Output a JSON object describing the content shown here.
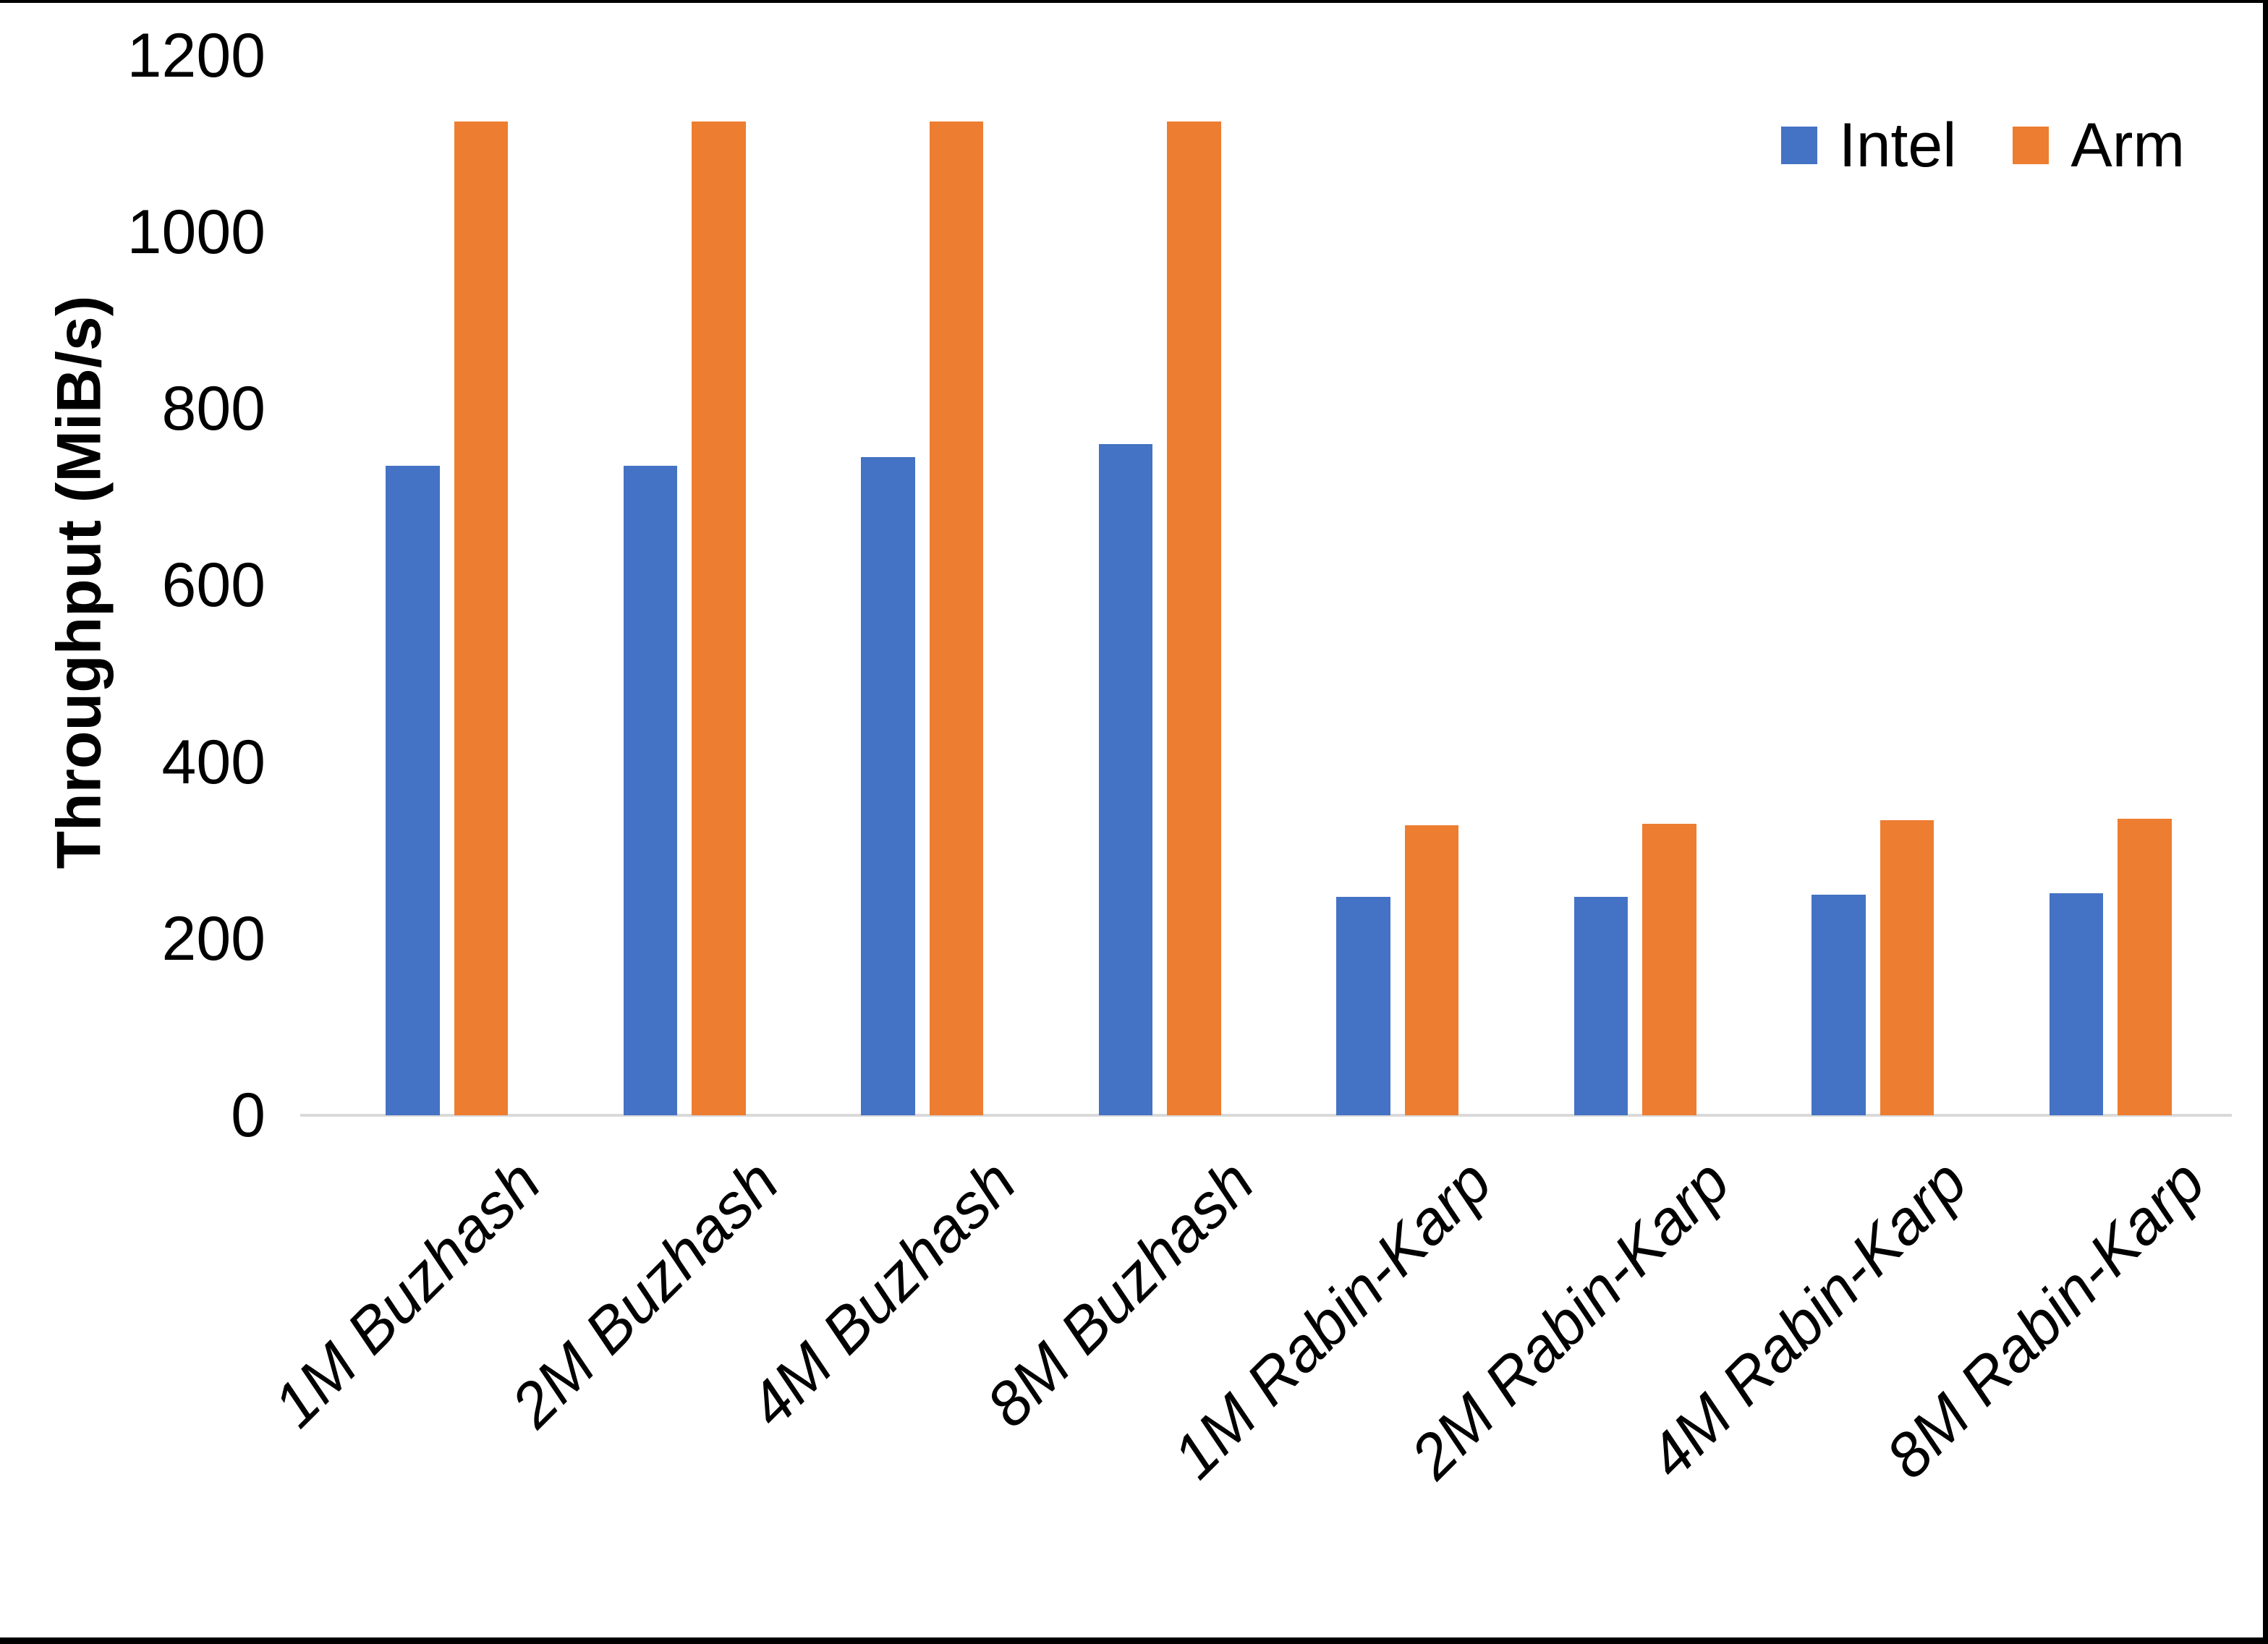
{
  "chart_data": {
    "type": "bar",
    "title": "",
    "xlabel": "",
    "ylabel": "Throughput (MiB/s)",
    "ylim": [
      0,
      1200
    ],
    "yticks": [
      0,
      200,
      400,
      600,
      800,
      1000,
      1200
    ],
    "grid": false,
    "legend_position": "top-right",
    "background": "#ffffff",
    "axis_line_color": "#d9d9d9",
    "text_color": "#000000",
    "frame_color": "#000000",
    "categories": [
      "1M Buzhash",
      "2M Buzhash",
      "4M Buzhash",
      "8M Buzhash",
      "1M Rabin-Karp",
      "2M Rabin-Karp",
      "4M Rabin-Karp",
      "8M Rabin-Karp"
    ],
    "series": [
      {
        "name": "Intel",
        "color": "#4472C4",
        "values": [
          735,
          735,
          745,
          760,
          247,
          247,
          250,
          251
        ]
      },
      {
        "name": "Arm",
        "color": "#ED7D31",
        "values": [
          1125,
          1125,
          1125,
          1125,
          328,
          330,
          334,
          336
        ]
      }
    ]
  }
}
